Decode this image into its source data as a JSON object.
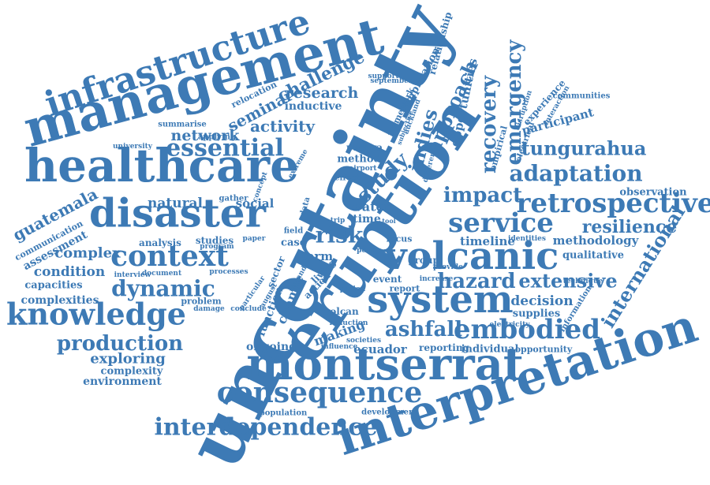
{
  "colors": {
    "word": "#3d7ab5",
    "background": "#ffffff"
  },
  "words": [
    "uncertainty",
    "eruption",
    "management",
    "healthcare",
    "infrastructure",
    "interpretation",
    "montserrat",
    "volcanic",
    "system",
    "disaster",
    "knowledge",
    "context",
    "consequence",
    "interdependence",
    "dynamic",
    "production",
    "essential",
    "service",
    "embodied",
    "ashfall",
    "retrospective",
    "adaptation",
    "recovery",
    "emergency",
    "tungurahua",
    "international",
    "hazard",
    "extensive",
    "resilience",
    "risk",
    "impact",
    "approach",
    "indies",
    "study",
    "challenge",
    "research",
    "seminar",
    "activity",
    "network",
    "guatemala",
    "assessment",
    "complex",
    "condition",
    "complexities",
    "capacities",
    "exploring",
    "complexity",
    "environment",
    "ongoing",
    "making",
    "ecuador",
    "reporting",
    "individual",
    "opportunity",
    "supplies",
    "decision",
    "timeline",
    "methodology",
    "qualitative",
    "observation",
    "participant",
    "experience",
    "communities",
    "framework",
    "opportunities",
    "implication",
    "relationship",
    "inductive",
    "relocation",
    "summarise",
    "applying",
    "university",
    "natural",
    "social",
    "communication",
    "analysis",
    "studies",
    "processes",
    "problem",
    "volcan",
    "function",
    "change",
    "sector",
    "term",
    "case",
    "field",
    "time",
    "water",
    "method",
    "pacaya",
    "effect",
    "report",
    "group",
    "event",
    "population",
    "development",
    "reduction",
    "influence",
    "societies",
    "empirical",
    "electrical",
    "information",
    "electricity",
    "technique",
    "interaction",
    "september",
    "auckland",
    "document",
    "interview",
    "gather",
    "extreme",
    "living",
    "action",
    "provide",
    "increase",
    "identities",
    "different",
    "damage",
    "particular",
    "conclude",
    "iceland",
    "paper",
    "program",
    "support",
    "august",
    "disruption",
    "subjective",
    "airport",
    "concept",
    "period",
    "policy",
    "focus",
    "trip",
    "tool",
    "data"
  ]
}
